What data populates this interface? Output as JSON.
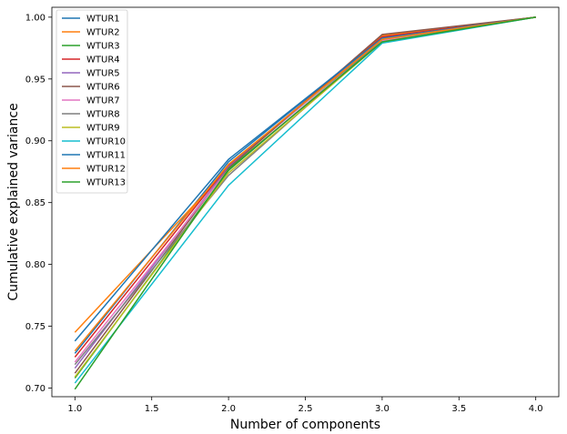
{
  "chart_data": {
    "type": "line",
    "title": "",
    "xlabel": "Number of components",
    "ylabel": "Cumulative explained variance",
    "x": [
      1,
      2,
      3,
      4
    ],
    "xlim": [
      0.85,
      4.15
    ],
    "ylim": [
      0.693,
      1.008
    ],
    "xticks": [
      1.0,
      1.5,
      2.0,
      2.5,
      3.0,
      3.5,
      4.0
    ],
    "xtick_labels": [
      "1.0",
      "1.5",
      "2.0",
      "2.5",
      "3.0",
      "3.5",
      "4.0"
    ],
    "yticks": [
      0.7,
      0.75,
      0.8,
      0.85,
      0.9,
      0.95,
      1.0
    ],
    "ytick_labels": [
      "0.70",
      "0.75",
      "0.80",
      "0.85",
      "0.90",
      "0.95",
      "1.00"
    ],
    "grid": false,
    "legend_position": "top-left",
    "series": [
      {
        "name": "WTUR1",
        "color": "#1f77b4",
        "values": [
          0.728,
          0.883,
          0.984,
          1.0
        ]
      },
      {
        "name": "WTUR2",
        "color": "#ff7f0e",
        "values": [
          0.745,
          0.878,
          0.985,
          1.0
        ]
      },
      {
        "name": "WTUR3",
        "color": "#2ca02c",
        "values": [
          0.708,
          0.876,
          0.982,
          1.0
        ]
      },
      {
        "name": "WTUR4",
        "color": "#d62728",
        "values": [
          0.725,
          0.88,
          0.984,
          1.0
        ]
      },
      {
        "name": "WTUR5",
        "color": "#9467bd",
        "values": [
          0.716,
          0.879,
          0.983,
          1.0
        ]
      },
      {
        "name": "WTUR6",
        "color": "#8c564b",
        "values": [
          0.712,
          0.878,
          0.986,
          1.0
        ]
      },
      {
        "name": "WTUR7",
        "color": "#e377c2",
        "values": [
          0.721,
          0.877,
          0.981,
          1.0
        ]
      },
      {
        "name": "WTUR8",
        "color": "#7f7f7f",
        "values": [
          0.719,
          0.872,
          0.982,
          1.0
        ]
      },
      {
        "name": "WTUR9",
        "color": "#bcbd22",
        "values": [
          0.709,
          0.874,
          0.98,
          1.0
        ]
      },
      {
        "name": "WTUR10",
        "color": "#17becf",
        "values": [
          0.704,
          0.864,
          0.979,
          1.0
        ]
      },
      {
        "name": "WTUR11",
        "color": "#1f77b4",
        "values": [
          0.738,
          0.885,
          0.983,
          1.0
        ]
      },
      {
        "name": "WTUR12",
        "color": "#ff7f0e",
        "values": [
          0.73,
          0.881,
          0.982,
          1.0
        ]
      },
      {
        "name": "WTUR13",
        "color": "#2ca02c",
        "values": [
          0.699,
          0.877,
          0.98,
          1.0
        ]
      }
    ]
  }
}
